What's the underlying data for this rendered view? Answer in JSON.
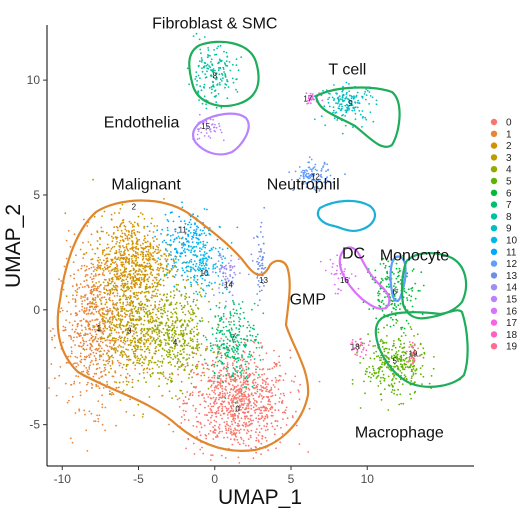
{
  "chart_data": {
    "type": "scatter",
    "xlabel": "UMAP_1",
    "ylabel": "UMAP_2",
    "xlim": [
      -11,
      17
    ],
    "ylim": [
      -6.8,
      12.4
    ],
    "x_ticks": [
      -10,
      -5,
      0,
      5,
      10
    ],
    "y_ticks": [
      -5,
      0,
      5,
      10
    ],
    "grid": false,
    "legend_placement": "right",
    "clusters": [
      {
        "name": "0",
        "color": "#F8766D",
        "label_x": 1.5,
        "label_y": -4.3,
        "cx": 1.5,
        "cy": -4.0,
        "sx": 1.7,
        "sy": 1.1,
        "n": 900
      },
      {
        "name": "1",
        "color": "#E8853A",
        "label_x": -7.6,
        "label_y": -0.8,
        "cx": -7.8,
        "cy": -0.8,
        "sx": 1.2,
        "sy": 1.7,
        "n": 700
      },
      {
        "name": "2",
        "color": "#D39200",
        "label_x": -5.3,
        "label_y": 4.5,
        "cx": -5.4,
        "cy": 2.1,
        "sx": 1.3,
        "sy": 1.0,
        "n": 650
      },
      {
        "name": "3",
        "color": "#BB9D00",
        "label_x": -5.6,
        "label_y": -0.9,
        "cx": -5.4,
        "cy": -0.6,
        "sx": 1.1,
        "sy": 1.3,
        "n": 550
      },
      {
        "name": "4",
        "color": "#93AA00",
        "label_x": -2.6,
        "label_y": -1.4,
        "cx": -2.5,
        "cy": -1.2,
        "sx": 1.2,
        "sy": 1.1,
        "n": 450
      },
      {
        "name": "5",
        "color": "#5EB300",
        "label_x": 11.8,
        "label_y": -2.2,
        "cx": 11.8,
        "cy": -2.4,
        "sx": 1.0,
        "sy": 0.7,
        "n": 320
      },
      {
        "name": "6",
        "color": "#00BA38",
        "label_x": 11.8,
        "label_y": 0.8,
        "cx": 11.8,
        "cy": 0.8,
        "sx": 0.8,
        "sy": 0.7,
        "n": 180
      },
      {
        "name": "7",
        "color": "#00BF74",
        "label_x": 1.2,
        "label_y": -1.2,
        "cx": 1.2,
        "cy": -1.4,
        "sx": 0.8,
        "sy": 0.9,
        "n": 260
      },
      {
        "name": "8",
        "color": "#00C19F",
        "label_x": 0.0,
        "label_y": 10.2,
        "cx": -0.2,
        "cy": 10.2,
        "sx": 0.8,
        "sy": 0.6,
        "n": 170
      },
      {
        "name": "9",
        "color": "#00BFC4",
        "label_x": 8.9,
        "label_y": 9.0,
        "cx": 8.7,
        "cy": 9.0,
        "sx": 0.9,
        "sy": 0.4,
        "n": 160
      },
      {
        "name": "10",
        "color": "#00B8E7",
        "label_x": -0.7,
        "label_y": 1.6,
        "cx": -1.0,
        "cy": 2.2,
        "sx": 1.0,
        "sy": 0.8,
        "n": 220
      },
      {
        "name": "11",
        "color": "#00A9FF",
        "label_x": -2.1,
        "label_y": 3.5,
        "cx": -2.0,
        "cy": 3.1,
        "sx": 0.8,
        "sy": 0.6,
        "n": 120
      },
      {
        "name": "12",
        "color": "#619CFF",
        "label_x": 6.6,
        "label_y": 5.8,
        "cx": 6.4,
        "cy": 5.8,
        "sx": 0.6,
        "sy": 0.3,
        "n": 110
      },
      {
        "name": "13",
        "color": "#6D8FE8",
        "label_x": 3.2,
        "label_y": 1.3,
        "cx": 3.0,
        "cy": 1.8,
        "sx": 0.2,
        "sy": 0.8,
        "n": 60
      },
      {
        "name": "14",
        "color": "#9E8FF0",
        "label_x": 0.9,
        "label_y": 1.1,
        "cx": 0.8,
        "cy": 1.5,
        "sx": 0.4,
        "sy": 0.5,
        "n": 60
      },
      {
        "name": "15",
        "color": "#B983FF",
        "label_x": -0.6,
        "label_y": 8.0,
        "cx": -0.6,
        "cy": 7.9,
        "sx": 0.5,
        "sy": 0.25,
        "n": 45
      },
      {
        "name": "16",
        "color": "#DB72FB",
        "label_x": 8.5,
        "label_y": 1.3,
        "cx": 8.3,
        "cy": 1.5,
        "sx": 0.6,
        "sy": 0.4,
        "n": 35
      },
      {
        "name": "17",
        "color": "#F265E7",
        "label_x": 6.1,
        "label_y": 9.2,
        "cx": 6.4,
        "cy": 9.2,
        "sx": 0.3,
        "sy": 0.15,
        "n": 25
      },
      {
        "name": "18",
        "color": "#FF61C3",
        "label_x": 9.2,
        "label_y": -1.6,
        "cx": 9.5,
        "cy": -1.6,
        "sx": 0.3,
        "sy": 0.2,
        "n": 25
      },
      {
        "name": "19",
        "color": "#FF6C91",
        "label_x": 13.0,
        "label_y": -1.9,
        "cx": 13.0,
        "cy": -1.9,
        "sx": 0.2,
        "sy": 0.3,
        "n": 30
      }
    ],
    "annotations": [
      {
        "text": "Fibroblast & SMC",
        "x": 0.0,
        "y": 12.5
      },
      {
        "text": "T cell",
        "x": 8.7,
        "y": 10.5
      },
      {
        "text": "Endothelia",
        "x": -4.8,
        "y": 8.2
      },
      {
        "text": "Malignant",
        "x": -4.5,
        "y": 5.5
      },
      {
        "text": "Neutrophil",
        "x": 5.8,
        "y": 5.5
      },
      {
        "text": "DC",
        "x": 9.1,
        "y": 2.5
      },
      {
        "text": "Monocyte",
        "x": 13.1,
        "y": 2.4
      },
      {
        "text": "GMP",
        "x": 6.1,
        "y": 0.5
      },
      {
        "text": "Macrophage",
        "x": 12.1,
        "y": -5.3
      }
    ],
    "regions": [
      {
        "name": "Fibroblast & SMC",
        "color": "#1EAD5A"
      },
      {
        "name": "T cell",
        "color": "#1EAD5A"
      },
      {
        "name": "Endothelia",
        "color": "#B983FF"
      },
      {
        "name": "Malignant",
        "color": "#E0872E"
      },
      {
        "name": "Neutrophil",
        "color": "#1BB0D8"
      },
      {
        "name": "GMP",
        "color": "#DB72FB"
      },
      {
        "name": "DC",
        "color": "#619CFF"
      },
      {
        "name": "Monocyte",
        "color": "#1EAD5A"
      },
      {
        "name": "Macrophage",
        "color": "#1EAD5A"
      }
    ]
  }
}
